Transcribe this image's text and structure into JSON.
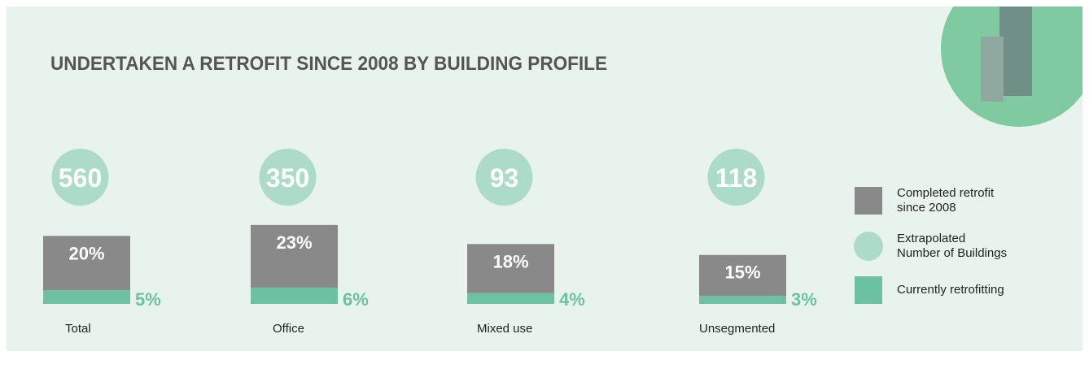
{
  "chart_data": {
    "type": "bar",
    "title": "UNDERTAKEN A RETROFIT SINCE 2008 BY BUILDING PROFILE",
    "categories": [
      "Total",
      "Office",
      "Mixed use",
      "Unsegmented"
    ],
    "series": [
      {
        "name": "Completed retrofit since 2008",
        "color": "#898989",
        "values": [
          20,
          23,
          18,
          15
        ],
        "value_labels": [
          "20%",
          "23%",
          "18%",
          "15%"
        ]
      },
      {
        "name": "Currently retrofitting",
        "color": "#6cc2a0",
        "values": [
          5,
          6,
          4,
          3
        ],
        "value_labels": [
          "5%",
          "6%",
          "4%",
          "3%"
        ]
      }
    ],
    "buildings": {
      "name": "Extrapolated Number of Buildings",
      "color": "#acdcc8",
      "values": [
        560,
        350,
        93,
        118
      ]
    }
  }
}
